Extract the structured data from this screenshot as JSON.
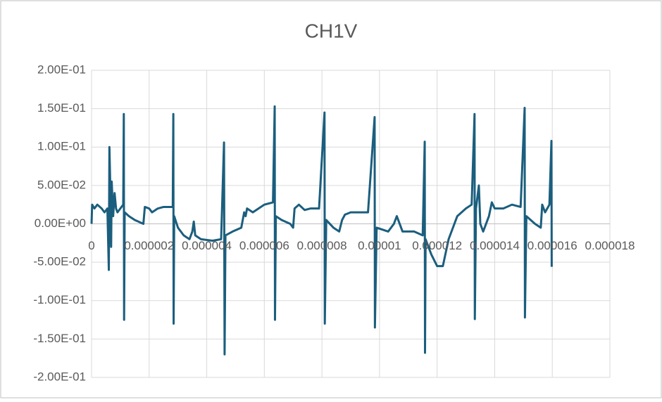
{
  "chart_data": {
    "type": "line",
    "title": "CH1V",
    "x": [
      0,
      2e-08,
      1e-07,
      2e-07,
      3.5e-07,
      4.5e-07,
      5.5e-07,
      6e-07,
      6.2e-07,
      6.5e-07,
      6.8e-07,
      7e-07,
      7.5e-07,
      8e-07,
      8.5e-07,
      9e-07,
      1e-06,
      1.1e-06,
      1.12e-06,
      1.13e-06,
      1.15e-06,
      1.3e-06,
      1.5e-06,
      1.8e-06,
      1.85e-06,
      2e-06,
      2.1e-06,
      2.3e-06,
      2.5e-06,
      2.82e-06,
      2.84e-06,
      2.85e-06,
      2.87e-06,
      3e-06,
      3.2e-06,
      3.4e-06,
      3.5e-06,
      3.55e-06,
      3.6e-06,
      3.8e-06,
      4.2e-06,
      4.5e-06,
      4.6e-06,
      4.62e-06,
      4.65e-06,
      4.9e-06,
      5.2e-06,
      5.3e-06,
      5.35e-06,
      5.4e-06,
      5.6e-06,
      5.8e-06,
      6e-06,
      6.3e-06,
      6.36e-06,
      6.37e-06,
      6.4e-06,
      6.6e-06,
      6.9e-06,
      7e-06,
      7.05e-06,
      7.2e-06,
      7.4e-06,
      7.6e-06,
      7.9e-06,
      8.09e-06,
      8.1e-06,
      8.15e-06,
      8.4e-06,
      8.6e-06,
      8.7e-06,
      8.8e-06,
      9e-06,
      9.3e-06,
      9.6e-06,
      9.83e-06,
      9.84e-06,
      9.9e-06,
      1.03e-05,
      1.05e-05,
      1.06e-05,
      1.08e-05,
      1.12e-05,
      1.15e-05,
      1.157e-05,
      1.158e-05,
      1.16e-05,
      1.18e-05,
      1.2e-05,
      1.22e-05,
      1.24e-05,
      1.27e-05,
      1.3e-05,
      1.32e-05,
      1.33e-05,
      1.331e-05,
      1.335e-05,
      1.345e-05,
      1.35e-05,
      1.36e-05,
      1.38e-05,
      1.39e-05,
      1.4e-05,
      1.43e-05,
      1.46e-05,
      1.49e-05,
      1.504e-05,
      1.505e-05,
      1.51e-05,
      1.54e-05,
      1.56e-05,
      1.565e-05,
      1.575e-05,
      1.59e-05,
      1.597e-05,
      1.598e-05
    ],
    "series": [
      {
        "name": "CH1V",
        "color": "#1b5e7e",
        "values": [
          0,
          0.025,
          0.02,
          0.025,
          0.02,
          0.015,
          0.02,
          -0.06,
          0.1,
          0.05,
          -0.03,
          0.055,
          0.01,
          0.04,
          0.02,
          0.015,
          0.02,
          0.025,
          0.143,
          -0.125,
          0.015,
          0.01,
          0.005,
          0,
          0.022,
          0.02,
          0.015,
          0.02,
          0.022,
          0.022,
          0.143,
          -0.13,
          0.01,
          -0.005,
          -0.015,
          -0.02,
          -0.01,
          0.003,
          -0.015,
          -0.02,
          -0.022,
          -0.02,
          0.106,
          -0.17,
          -0.015,
          -0.01,
          -0.005,
          0.015,
          0.01,
          0.02,
          0.015,
          0.02,
          0.025,
          0.028,
          0.153,
          -0.125,
          0.01,
          0.005,
          0,
          -0.005,
          0.02,
          0.025,
          0.018,
          0.02,
          0.02,
          0.145,
          -0.13,
          0.005,
          -0.005,
          -0.01,
          0.005,
          0.012,
          0.015,
          0.015,
          0.015,
          0.139,
          -0.135,
          -0.005,
          -0.01,
          0,
          0.01,
          -0.01,
          -0.01,
          -0.015,
          0.107,
          -0.168,
          -0.02,
          -0.04,
          -0.055,
          -0.055,
          -0.02,
          0.01,
          0.02,
          0.025,
          0.143,
          -0.124,
          0.02,
          0.05,
          0,
          -0.01,
          0.01,
          0.028,
          0.02,
          0.02,
          0.025,
          0.022,
          0.151,
          -0.122,
          0.01,
          0,
          -0.005,
          0.025,
          0.015,
          0.025,
          0.108,
          -0.056
        ]
      }
    ],
    "xlim": [
      0,
      1.8e-05
    ],
    "xticks": [
      {
        "value": 0,
        "label": "0"
      },
      {
        "value": 2e-06,
        "label": "0.000002"
      },
      {
        "value": 4e-06,
        "label": "0.000004"
      },
      {
        "value": 6e-06,
        "label": "0.000006"
      },
      {
        "value": 8e-06,
        "label": "0.000008"
      },
      {
        "value": 1e-05,
        "label": "0.00001"
      },
      {
        "value": 1.2e-05,
        "label": "0.000012"
      },
      {
        "value": 1.4e-05,
        "label": "0.000014"
      },
      {
        "value": 1.6e-05,
        "label": "0.000016"
      },
      {
        "value": 1.8e-05,
        "label": "0.000018"
      }
    ],
    "ylim": [
      -0.2,
      0.2
    ],
    "yticks": [
      {
        "value": 0.2,
        "label": "2.00E-01"
      },
      {
        "value": 0.15,
        "label": "1.50E-01"
      },
      {
        "value": 0.1,
        "label": "1.00E-01"
      },
      {
        "value": 0.05,
        "label": "5.00E-02"
      },
      {
        "value": 0,
        "label": "0.00E+00"
      },
      {
        "value": -0.05,
        "label": "-5.00E-02"
      },
      {
        "value": -0.1,
        "label": "-1.00E-01"
      },
      {
        "value": -0.15,
        "label": "-1.50E-01"
      },
      {
        "value": -0.2,
        "label": "-2.00E-01"
      }
    ],
    "grid": true
  }
}
